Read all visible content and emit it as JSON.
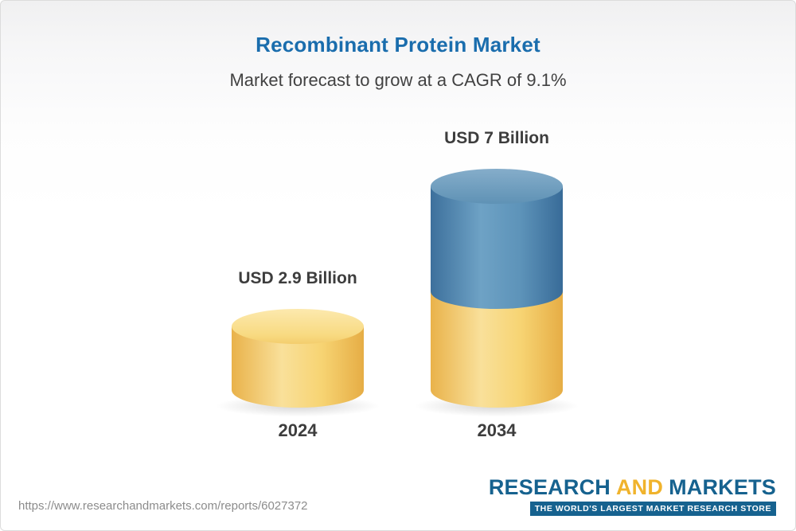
{
  "header": {
    "title": "Recombinant Protein Market",
    "subtitle": "Market forecast to grow at a CAGR of 9.1%"
  },
  "chart_data": {
    "type": "bar",
    "title": "Recombinant Protein Market",
    "subtitle": "Market forecast to grow at a CAGR of 9.1%",
    "categories": [
      "2024",
      "2034"
    ],
    "values": [
      2.9,
      7
    ],
    "value_labels": [
      "USD 2.9 Billion",
      "USD 7 Billion"
    ],
    "unit": "USD Billion",
    "cagr_percent": 9.1,
    "ylim": [
      0,
      7
    ],
    "grid": false,
    "legend_position": "none",
    "bar_2034_segments": [
      {
        "value": 2.9,
        "color": "#f3cd6d"
      },
      {
        "value": 4.1,
        "color": "#4e83ad"
      }
    ],
    "colors": {
      "bar_yellow": "#f3cd6d",
      "bar_blue": "#4e83ad",
      "title": "#1a6dad",
      "labels": "#3d3d3d"
    }
  },
  "footer": {
    "url": "https://www.researchandmarkets.com/reports/6027372",
    "logo": {
      "research": "RESEARCH",
      "and": "AND",
      "markets": "MARKETS",
      "tagline": "THE WORLD'S LARGEST MARKET RESEARCH STORE"
    }
  }
}
